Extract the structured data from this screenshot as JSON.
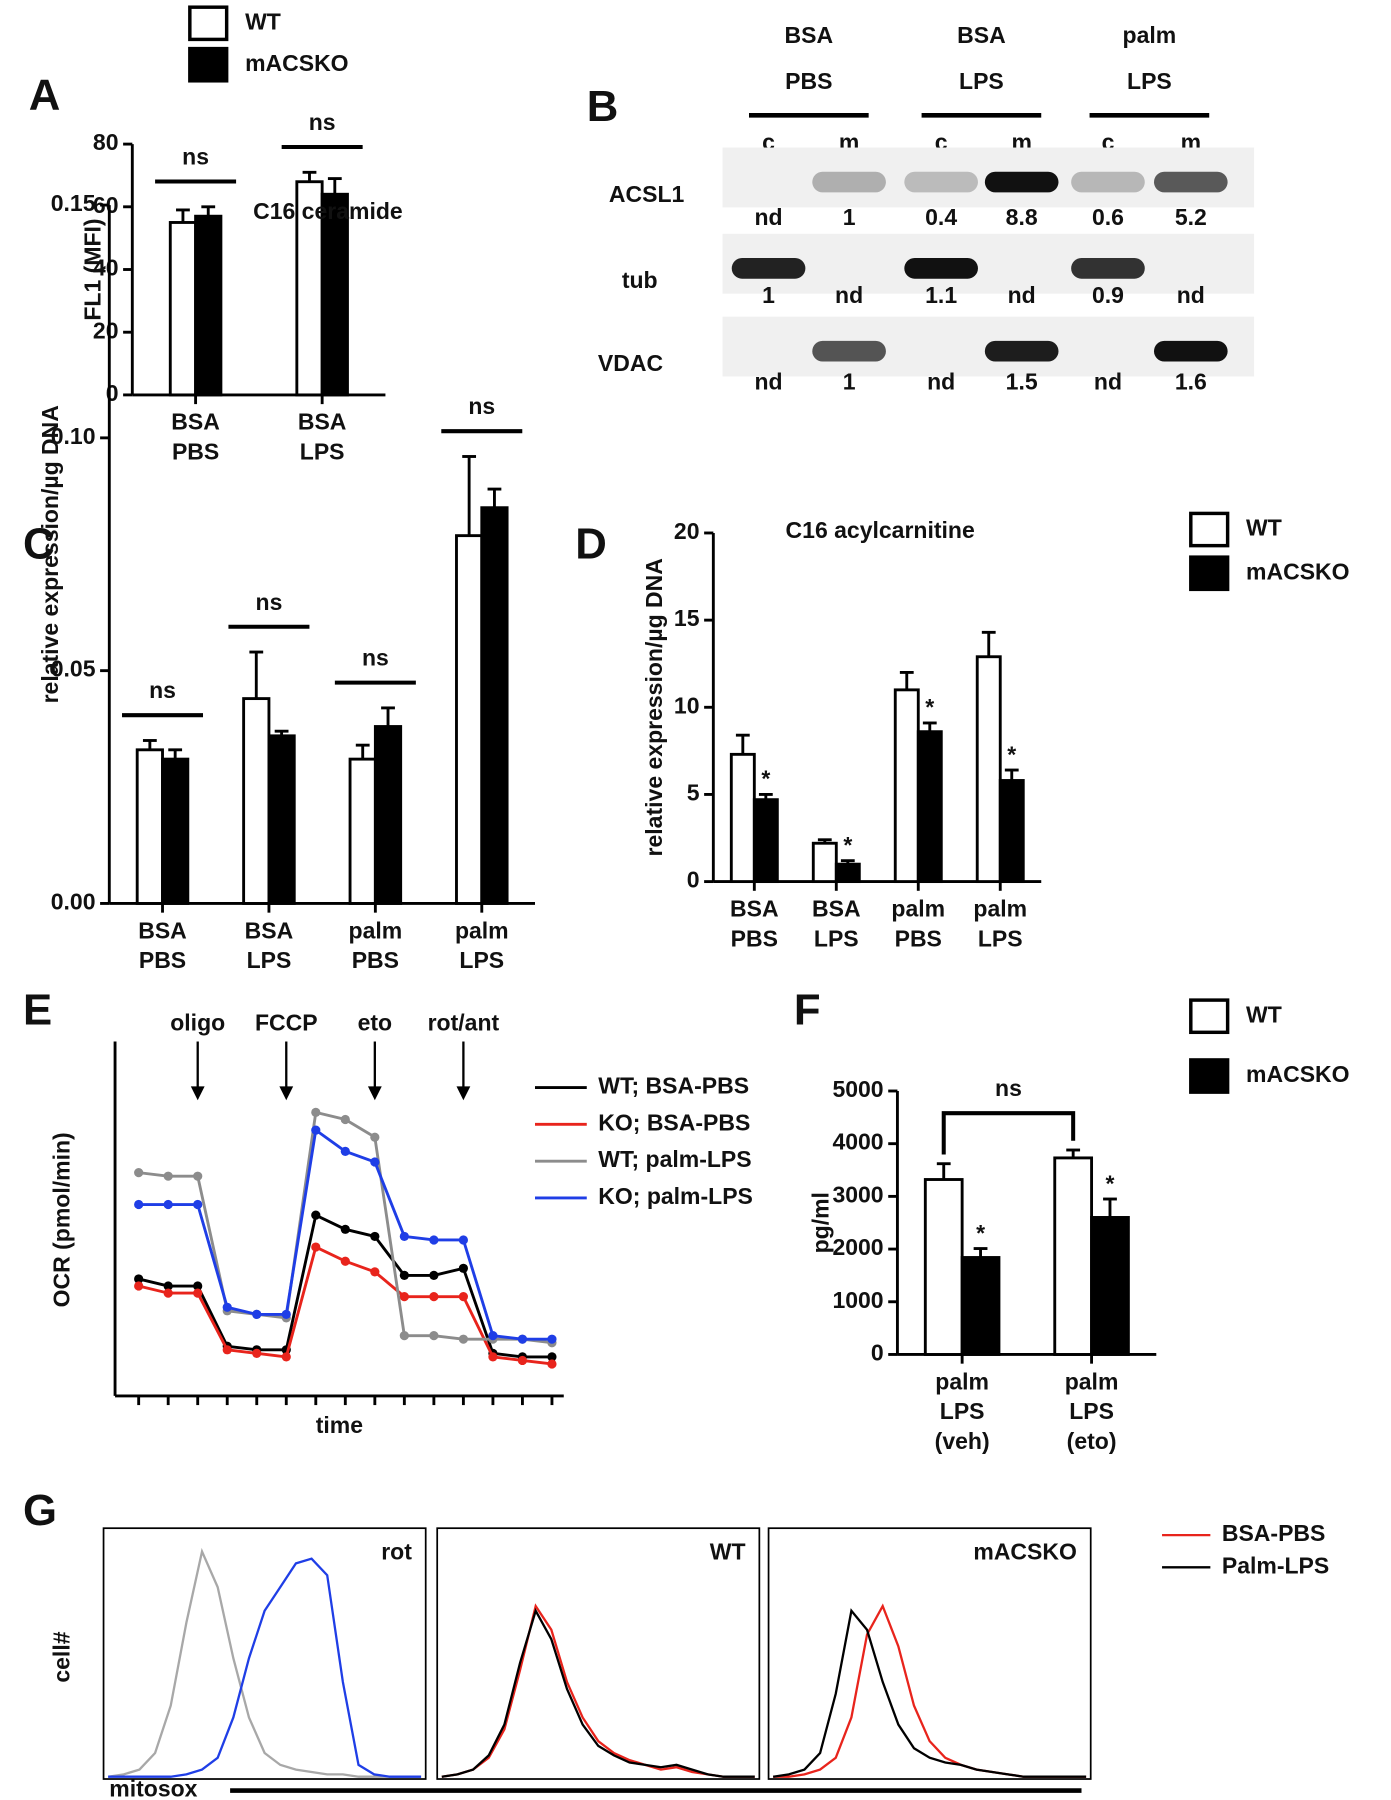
{
  "chart_data": [
    {
      "type": "bar",
      "panel": "A",
      "ylabel": "FL1 (MFI)",
      "categories": [
        [
          "BSA",
          "PBS"
        ],
        [
          "BSA",
          "LPS"
        ]
      ],
      "series": [
        {
          "name": "WT",
          "color": "#ffffff",
          "values": [
            55,
            68
          ],
          "errors": [
            4,
            3
          ]
        },
        {
          "name": "mACSKO",
          "color": "#000000",
          "values": [
            57,
            64
          ],
          "errors": [
            3,
            5
          ]
        }
      ],
      "ylim": [
        0,
        80
      ],
      "yticks": [
        0,
        20,
        40,
        60,
        80
      ],
      "group_annotations": [
        "ns",
        "ns"
      ]
    },
    {
      "type": "blot",
      "panel": "B",
      "groups": [
        [
          "BSA",
          "PBS"
        ],
        [
          "BSA",
          "LPS"
        ],
        [
          "palm",
          "LPS"
        ]
      ],
      "lanes": [
        "c",
        "m",
        "c",
        "m",
        "c",
        "m"
      ],
      "rows": [
        {
          "name": "ACSL1",
          "values": [
            "nd",
            1,
            0.4,
            8.8,
            0.6,
            5.2
          ]
        },
        {
          "name": "tub",
          "values": [
            1,
            "nd",
            1.1,
            "nd",
            0.9,
            "nd"
          ]
        },
        {
          "name": "VDAC",
          "values": [
            "nd",
            1,
            "nd",
            1.5,
            "nd",
            1.6
          ]
        }
      ]
    },
    {
      "type": "bar",
      "panel": "C",
      "title": "C16 ceramide",
      "ylabel": "relative expression/µg DNA",
      "categories": [
        [
          "BSA",
          "PBS"
        ],
        [
          "BSA",
          "LPS"
        ],
        [
          "palm",
          "PBS"
        ],
        [
          "palm",
          "LPS"
        ]
      ],
      "series": [
        {
          "name": "WT",
          "color": "#ffffff",
          "values": [
            0.033,
            0.044,
            0.031,
            0.079
          ],
          "errors": [
            0.002,
            0.01,
            0.003,
            0.017
          ]
        },
        {
          "name": "mACSKO",
          "color": "#000000",
          "values": [
            0.031,
            0.036,
            0.038,
            0.085
          ],
          "errors": [
            0.002,
            0.001,
            0.004,
            0.004
          ]
        }
      ],
      "ylim": [
        0,
        0.15
      ],
      "yticks": [
        {
          "value": 0,
          "label": "0.00"
        },
        {
          "value": 0.05,
          "label": "0.05"
        },
        {
          "value": 0.1,
          "label": "0.10"
        },
        {
          "value": 0.15,
          "label": "0.15"
        }
      ],
      "group_annotations": [
        "ns",
        "ns",
        "ns",
        "ns"
      ]
    },
    {
      "type": "bar",
      "panel": "D",
      "title": "C16 acylcarnitine",
      "ylabel": "relative expression/µg DNA",
      "categories": [
        [
          "BSA",
          "PBS"
        ],
        [
          "BSA",
          "LPS"
        ],
        [
          "palm",
          "PBS"
        ],
        [
          "palm",
          "LPS"
        ]
      ],
      "series": [
        {
          "name": "WT",
          "color": "#ffffff",
          "values": [
            7.3,
            2.2,
            11.0,
            12.9
          ],
          "errors": [
            1.1,
            0.2,
            1.0,
            1.4
          ]
        },
        {
          "name": "mACSKO",
          "color": "#000000",
          "values": [
            4.7,
            1.0,
            8.6,
            5.8
          ],
          "errors": [
            0.3,
            0.2,
            0.5,
            0.6
          ],
          "annotations": [
            "*",
            "*",
            "*",
            "*"
          ]
        }
      ],
      "ylim": [
        0,
        20
      ],
      "yticks": [
        0,
        5,
        10,
        15,
        20
      ]
    },
    {
      "type": "line",
      "panel": "E",
      "xlabel": "time",
      "ylabel": "OCR (pmol/min)",
      "x": [
        1,
        2,
        3,
        4,
        5,
        6,
        7,
        8,
        9,
        10,
        11,
        12,
        13,
        14,
        15
      ],
      "xlim": [
        0.2,
        15.4
      ],
      "ylim": [
        0,
        100
      ],
      "series": [
        {
          "name": "WT; BSA-PBS",
          "color": "#000000",
          "values": [
            33,
            31,
            31,
            14,
            13,
            13,
            51,
            47,
            45,
            34,
            34,
            36,
            12,
            11,
            11
          ]
        },
        {
          "name": "KO; BSA-PBS",
          "color": "#e8241c",
          "values": [
            31,
            29,
            29,
            13,
            12,
            11,
            42,
            38,
            35,
            28,
            28,
            28,
            11,
            10,
            9
          ]
        },
        {
          "name": "WT; palm-LPS",
          "color": "#8c8c8c",
          "values": [
            63,
            62,
            62,
            24,
            23,
            22,
            80,
            78,
            73,
            17,
            17,
            16,
            16,
            16,
            15
          ]
        },
        {
          "name": "KO; palm-LPS",
          "color": "#1f3ee6",
          "values": [
            54,
            54,
            54,
            25,
            23,
            23,
            75,
            69,
            66,
            45,
            44,
            44,
            17,
            16,
            16
          ]
        }
      ],
      "annotations": [
        {
          "label": "oligo",
          "x": 3
        },
        {
          "label": "FCCP",
          "x": 6
        },
        {
          "label": "eto",
          "x": 9
        },
        {
          "label": "rot/ant",
          "x": 12
        }
      ]
    },
    {
      "type": "bar",
      "panel": "F",
      "ylabel": "pg/ml",
      "categories": [
        [
          "palm",
          "LPS",
          "(veh)"
        ],
        [
          "palm",
          "LPS",
          "(eto)"
        ]
      ],
      "series": [
        {
          "name": "WT",
          "color": "#ffffff",
          "values": [
            3320,
            3730
          ],
          "errors": [
            300,
            150
          ]
        },
        {
          "name": "mACSKO",
          "color": "#000000",
          "values": [
            1840,
            2600
          ],
          "errors": [
            170,
            350
          ],
          "annotations": [
            "*",
            "*"
          ]
        }
      ],
      "ylim": [
        0,
        5000
      ],
      "yticks": [
        0,
        1000,
        2000,
        3000,
        4000,
        5000
      ],
      "bracket_annotation": "ns"
    },
    {
      "type": "histogram-overlay",
      "panel": "G",
      "xlabel": "mitosox",
      "ylabel": "cell#",
      "ylim": [
        0,
        100
      ],
      "legend": [
        {
          "name": "BSA-PBS",
          "color": "#e8241c"
        },
        {
          "name": "Palm-LPS",
          "color": "#000000"
        }
      ],
      "subplots": [
        {
          "title": "rot",
          "series": [
            {
              "color": "#a8a8a8",
              "values": [
                0,
                1,
                3,
                10,
                30,
                65,
                95,
                80,
                50,
                25,
                10,
                5,
                3,
                2,
                1,
                1,
                0,
                0,
                0,
                0,
                0
              ]
            },
            {
              "color": "#1f3ee6",
              "values": [
                0,
                0,
                0,
                0,
                0,
                1,
                3,
                8,
                25,
                50,
                70,
                80,
                90,
                92,
                85,
                40,
                5,
                1,
                0,
                0,
                0
              ]
            }
          ]
        },
        {
          "title": "WT",
          "series": [
            {
              "color": "#e8241c",
              "values": [
                0,
                1,
                3,
                8,
                20,
                45,
                72,
                62,
                40,
                25,
                15,
                10,
                7,
                5,
                3,
                4,
                2,
                1,
                0,
                0,
                0
              ]
            },
            {
              "color": "#000000",
              "values": [
                0,
                1,
                3,
                9,
                22,
                48,
                70,
                58,
                37,
                22,
                13,
                9,
                6,
                5,
                4,
                5,
                3,
                1,
                0,
                0,
                0
              ]
            }
          ]
        },
        {
          "title": "mACSKO",
          "series": [
            {
              "color": "#e8241c",
              "values": [
                0,
                0,
                1,
                3,
                8,
                25,
                60,
                72,
                55,
                30,
                15,
                8,
                5,
                3,
                2,
                1,
                0,
                0,
                0,
                0,
                0
              ]
            },
            {
              "color": "#000000",
              "values": [
                0,
                1,
                3,
                10,
                35,
                70,
                62,
                40,
                22,
                12,
                8,
                6,
                5,
                3,
                2,
                1,
                0,
                0,
                0,
                0,
                0
              ]
            }
          ]
        }
      ]
    }
  ]
}
